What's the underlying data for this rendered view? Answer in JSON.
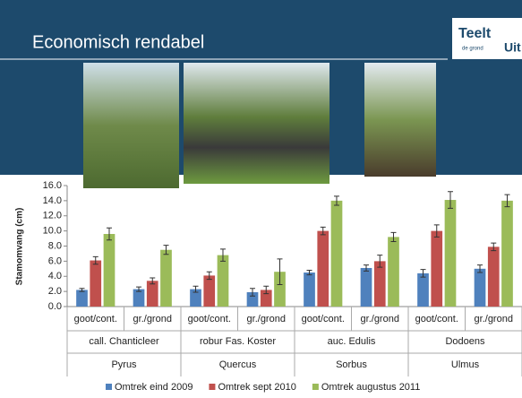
{
  "slide_title": "Economisch rendabel",
  "logo": {
    "word1": "Teelt",
    "word2": "Uit",
    "sub": "de grond"
  },
  "chart_data": {
    "type": "bar",
    "y_label": "Stamomvang (cm)",
    "categories": [
      "goot/cont.",
      "gr./grond",
      "goot/cont.",
      "gr./grond",
      "goot/cont.",
      "gr./grond",
      "goot/cont.",
      "gr./grond"
    ],
    "groups": [
      {
        "name": "call. Chanticleer",
        "genus": "Pyrus"
      },
      {
        "name": "robur Fas. Koster",
        "genus": "Quercus"
      },
      {
        "name": "auc. Edulis",
        "genus": "Sorbus"
      },
      {
        "name": "Dodoens",
        "genus": "Ulmus"
      }
    ],
    "series": [
      {
        "name": "Omtrek eind 2009",
        "color": "#4f81bd",
        "values": [
          2.2,
          2.3,
          2.3,
          1.9,
          4.5,
          5.1,
          4.4,
          5.0
        ],
        "errors": [
          0.2,
          0.3,
          0.4,
          0.5,
          0.3,
          0.4,
          0.5,
          0.5
        ]
      },
      {
        "name": "Omtrek sept 2010",
        "color": "#c0504d",
        "values": [
          6.1,
          3.4,
          4.1,
          2.2,
          10.0,
          6.0,
          10.0,
          7.9
        ],
        "errors": [
          0.5,
          0.4,
          0.5,
          0.5,
          0.5,
          0.8,
          0.8,
          0.5
        ]
      },
      {
        "name": "Omtrek augustus 2011",
        "color": "#9bbb59",
        "values": [
          9.6,
          7.5,
          6.8,
          4.6,
          14.0,
          9.2,
          14.1,
          14.0
        ],
        "errors": [
          0.8,
          0.6,
          0.8,
          1.7,
          0.6,
          0.6,
          1.1,
          0.8
        ]
      }
    ],
    "ylim": [
      0,
      16
    ],
    "yticks": [
      {
        "value": 0,
        "label": "0.0"
      },
      {
        "value": 2,
        "label": "2.0"
      },
      {
        "value": 4,
        "label": "4.0"
      },
      {
        "value": 6,
        "label": "6.0"
      },
      {
        "value": 8,
        "label": "8.0"
      },
      {
        "value": 10,
        "label": "10.0"
      },
      {
        "value": 12,
        "label": "12.0"
      },
      {
        "value": 14,
        "label": "14.0"
      },
      {
        "value": 16,
        "label": "16.0"
      }
    ]
  }
}
